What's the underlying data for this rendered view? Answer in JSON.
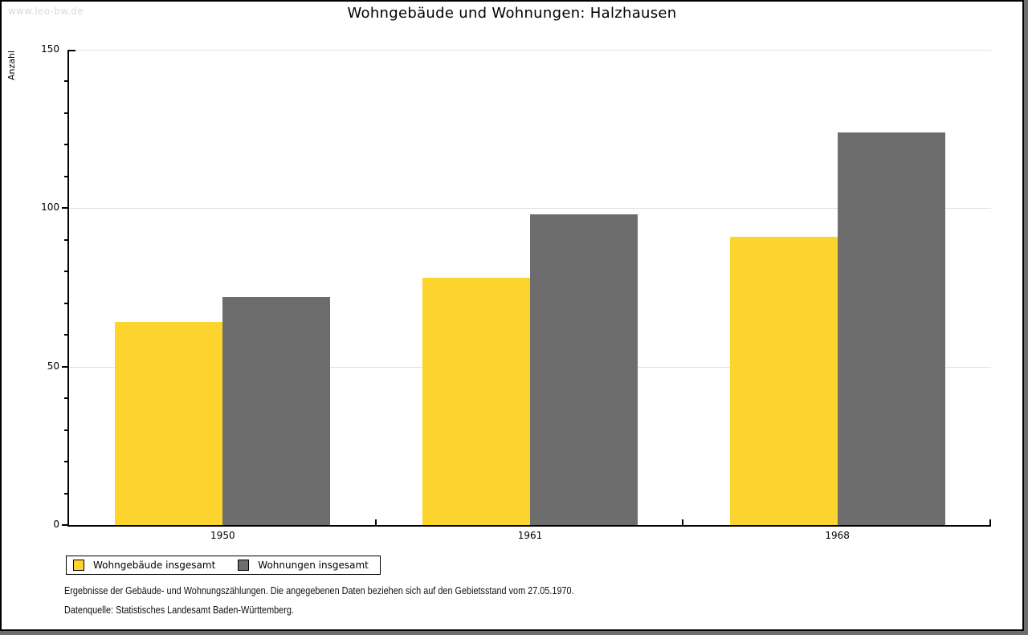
{
  "page": {
    "watermark": "www.leo-bw.de",
    "footnote_line1": "Ergebnisse der Gebäude- und Wohnungszählungen. Die angegebenen Daten beziehen sich auf den Gebietsstand vom 27.05.1970.",
    "footnote_line2": "Datenquelle: Statistisches Landesamt Baden-Württemberg."
  },
  "chart_data": {
    "type": "bar",
    "title": "Wohngebäude und Wohnungen: Halzhausen",
    "xlabel": "",
    "ylabel": "Anzahl",
    "categories": [
      "1950",
      "1961",
      "1968"
    ],
    "series": [
      {
        "name": "Wohngebäude insgesamt",
        "color": "#fdd32e",
        "values": [
          64,
          78,
          91
        ]
      },
      {
        "name": "Wohnungen insgesamt",
        "color": "#6d6d6d",
        "values": [
          72,
          98,
          124
        ]
      }
    ],
    "ylim": [
      0,
      150
    ],
    "ytick_major": 50,
    "ytick_minor": 10,
    "grid": "horizontal lines at major y ticks",
    "legend_position": "bottom-left",
    "colors": {
      "gridline": "#e0e0e0",
      "axis": "#000000",
      "watermark_text": "#dcdcdc",
      "frame_shadow": "#6e6e6e"
    }
  }
}
